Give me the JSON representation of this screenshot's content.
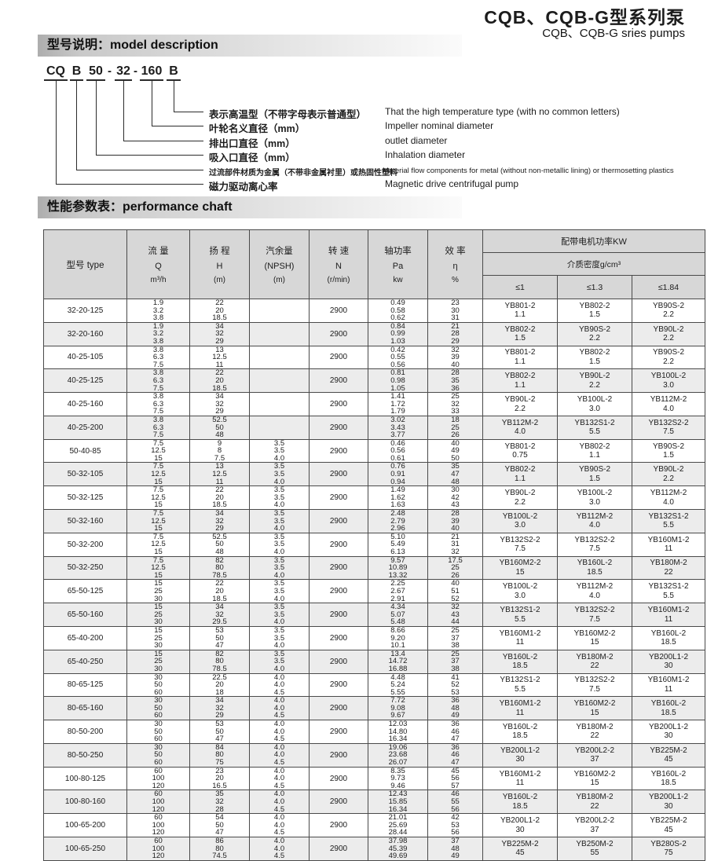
{
  "page": {
    "title_cn": "CQB、CQB-G型系列泵",
    "title_en": "CQB、CQB-G sries pumps"
  },
  "sections": {
    "model_desc": "型号说明：model description",
    "performance": "性能参数表：performance chaft"
  },
  "colors": {
    "header_bg": "#d7d7d7",
    "row_stripe": "#ececec",
    "bar_gradient_start": "#adadad",
    "bar_gradient_end": "#fbfbfb"
  },
  "model_code": {
    "tokens": [
      "CQ",
      "B",
      "50",
      "32",
      "160",
      "B"
    ],
    "separator": "-",
    "items": [
      {
        "cn": "表示高温型（不带字母表示普通型）",
        "en": "That the high temperature type (with no common letters)"
      },
      {
        "cn": "叶轮名义直径（mm）",
        "en": "Impeller nominal diameter"
      },
      {
        "cn": "排出口直径（mm）",
        "en": "outlet diameter"
      },
      {
        "cn": "吸入口直径（mm）",
        "en": "Inhalation diameter"
      },
      {
        "cn": "过流部件材质为金属（不带非金属衬里）或热固性塑料",
        "en": "Material flow components for metal (without non-metallic lining) or thermosetting plastics"
      },
      {
        "cn": "磁力驱动离心率",
        "en": "Magnetic drive centrifugal pump"
      }
    ]
  },
  "table": {
    "headers": {
      "type": "型号 type",
      "q_cn": "流 量",
      "q_sym": "Q",
      "q_unit": "m³/h",
      "h_cn": "扬 程",
      "h_sym": "H",
      "h_unit": "(m)",
      "npsh_cn": "汽余量",
      "npsh_sym": "(NPSH)",
      "npsh_unit": "(m)",
      "n_cn": "转 速",
      "n_sym": "N",
      "n_unit": "(r/min)",
      "pa_cn": "轴功率",
      "pa_sym": "Pa",
      "pa_unit": "kw",
      "eta_cn": "效 率",
      "eta_sym": "η",
      "eta_unit": "%",
      "motor_group": "配带电机功率KW",
      "density": "介质密度g/cm³",
      "d1": "≤1",
      "d2": "≤1.3",
      "d3": "≤1.84"
    },
    "rows": [
      {
        "type": "32-20-125",
        "q": [
          "1.9",
          "3.2",
          "3.8"
        ],
        "h": [
          "22",
          "20",
          "18.5"
        ],
        "npsh": [
          "",
          "",
          ""
        ],
        "n": "2900",
        "pa": [
          "0.49",
          "0.58",
          "0.62"
        ],
        "eta": [
          "23",
          "30",
          "31"
        ],
        "m1": [
          "YB801-2",
          "1.1"
        ],
        "m2": [
          "YB802-2",
          "1.5"
        ],
        "m3": [
          "YB90S-2",
          "2.2"
        ]
      },
      {
        "type": "32-20-160",
        "q": [
          "1.9",
          "3.2",
          "3.8"
        ],
        "h": [
          "34",
          "32",
          "29"
        ],
        "npsh": [
          "",
          "",
          ""
        ],
        "n": "2900",
        "pa": [
          "0.84",
          "0.99",
          "1.03"
        ],
        "eta": [
          "21",
          "28",
          "29"
        ],
        "m1": [
          "YB802-2",
          "1.5"
        ],
        "m2": [
          "YB90S-2",
          "2.2"
        ],
        "m3": [
          "YB90L-2",
          "2.2"
        ]
      },
      {
        "type": "40-25-105",
        "q": [
          "3.8",
          "6.3",
          "7.5"
        ],
        "h": [
          "13",
          "12.5",
          "11"
        ],
        "npsh": [
          "",
          "",
          ""
        ],
        "n": "2900",
        "pa": [
          "0.42",
          "0.55",
          "0.56"
        ],
        "eta": [
          "32",
          "39",
          "40"
        ],
        "m1": [
          "YB801-2",
          "1.1"
        ],
        "m2": [
          "YB802-2",
          "1.5"
        ],
        "m3": [
          "YB90S-2",
          "2.2"
        ]
      },
      {
        "type": "40-25-125",
        "q": [
          "3.8",
          "6.3",
          "7.5"
        ],
        "h": [
          "22",
          "20",
          "18.5"
        ],
        "npsh": [
          "",
          "",
          ""
        ],
        "n": "2900",
        "pa": [
          "0.81",
          "0.98",
          "1.05"
        ],
        "eta": [
          "28",
          "35",
          "36"
        ],
        "m1": [
          "YB802-2",
          "1.1"
        ],
        "m2": [
          "YB90L-2",
          "2.2"
        ],
        "m3": [
          "YB100L-2",
          "3.0"
        ]
      },
      {
        "type": "40-25-160",
        "q": [
          "3.8",
          "6.3",
          "7.5"
        ],
        "h": [
          "34",
          "32",
          "29"
        ],
        "npsh": [
          "",
          "",
          ""
        ],
        "n": "2900",
        "pa": [
          "1.41",
          "1.72",
          "1.79"
        ],
        "eta": [
          "25",
          "32",
          "33"
        ],
        "m1": [
          "YB90L-2",
          "2.2"
        ],
        "m2": [
          "YB100L-2",
          "3.0"
        ],
        "m3": [
          "YB112M-2",
          "4.0"
        ]
      },
      {
        "type": "40-25-200",
        "q": [
          "3.8",
          "6.3",
          "7.5"
        ],
        "h": [
          "52.5",
          "50",
          "48"
        ],
        "npsh": [
          "",
          "",
          ""
        ],
        "n": "2900",
        "pa": [
          "3.02",
          "3.43",
          "3.77"
        ],
        "eta": [
          "18",
          "25",
          "26"
        ],
        "m1": [
          "YB112M-2",
          "4.0"
        ],
        "m2": [
          "YB132S1-2",
          "5.5"
        ],
        "m3": [
          "YB132S2-2",
          "7.5"
        ]
      },
      {
        "type": "50-40-85",
        "q": [
          "7.5",
          "12.5",
          "15"
        ],
        "h": [
          "9",
          "8",
          "7.5"
        ],
        "npsh": [
          "3.5",
          "3.5",
          "4.0"
        ],
        "n": "2900",
        "pa": [
          "0.46",
          "0.56",
          "0.61"
        ],
        "eta": [
          "40",
          "49",
          "50"
        ],
        "m1": [
          "YB801-2",
          "0.75"
        ],
        "m2": [
          "YB802-2",
          "1.1"
        ],
        "m3": [
          "YB90S-2",
          "1.5"
        ]
      },
      {
        "type": "50-32-105",
        "q": [
          "7.5",
          "12.5",
          "15"
        ],
        "h": [
          "13",
          "12.5",
          "11"
        ],
        "npsh": [
          "3.5",
          "3.5",
          "4.0"
        ],
        "n": "2900",
        "pa": [
          "0.76",
          "0.91",
          "0.94"
        ],
        "eta": [
          "35",
          "47",
          "48"
        ],
        "m1": [
          "YB802-2",
          "1.1"
        ],
        "m2": [
          "YB90S-2",
          "1.5"
        ],
        "m3": [
          "YB90L-2",
          "2.2"
        ]
      },
      {
        "type": "50-32-125",
        "q": [
          "7.5",
          "12.5",
          "15"
        ],
        "h": [
          "22",
          "20",
          "18.5"
        ],
        "npsh": [
          "3.5",
          "3.5",
          "4.0"
        ],
        "n": "2900",
        "pa": [
          "1.49",
          "1.62",
          "1.63"
        ],
        "eta": [
          "30",
          "42",
          "43"
        ],
        "m1": [
          "YB90L-2",
          "2.2"
        ],
        "m2": [
          "YB100L-2",
          "3.0"
        ],
        "m3": [
          "YB112M-2",
          "4.0"
        ]
      },
      {
        "type": "50-32-160",
        "q": [
          "7.5",
          "12.5",
          "15"
        ],
        "h": [
          "34",
          "32",
          "29"
        ],
        "npsh": [
          "3.5",
          "3.5",
          "4.0"
        ],
        "n": "2900",
        "pa": [
          "2.48",
          "2.79",
          "2.96"
        ],
        "eta": [
          "28",
          "39",
          "40"
        ],
        "m1": [
          "YB100L-2",
          "3.0"
        ],
        "m2": [
          "YB112M-2",
          "4.0"
        ],
        "m3": [
          "YB132S1-2",
          "5.5"
        ]
      },
      {
        "type": "50-32-200",
        "q": [
          "7.5",
          "12.5",
          "15"
        ],
        "h": [
          "52.5",
          "50",
          "48"
        ],
        "npsh": [
          "3.5",
          "3.5",
          "4.0"
        ],
        "n": "2900",
        "pa": [
          "5.10",
          "5.49",
          "6.13"
        ],
        "eta": [
          "21",
          "31",
          "32"
        ],
        "m1": [
          "YB132S2-2",
          "7.5"
        ],
        "m2": [
          "YB132S2-2",
          "7.5"
        ],
        "m3": [
          "YB160M1-2",
          "11"
        ]
      },
      {
        "type": "50-32-250",
        "q": [
          "7.5",
          "12.5",
          "15"
        ],
        "h": [
          "82",
          "80",
          "78.5"
        ],
        "npsh": [
          "3.5",
          "3.5",
          "4.0"
        ],
        "n": "2900",
        "pa": [
          "9.57",
          "10.89",
          "13.32"
        ],
        "eta": [
          "17.5",
          "25",
          "26"
        ],
        "m1": [
          "YB160M2-2",
          "15"
        ],
        "m2": [
          "YB160L-2",
          "18.5"
        ],
        "m3": [
          "YB180M-2",
          "22"
        ]
      },
      {
        "type": "65-50-125",
        "q": [
          "15",
          "25",
          "30"
        ],
        "h": [
          "22",
          "20",
          "18.5"
        ],
        "npsh": [
          "3.5",
          "3.5",
          "4.0"
        ],
        "n": "2900",
        "pa": [
          "2.25",
          "2.67",
          "2.91"
        ],
        "eta": [
          "40",
          "51",
          "52"
        ],
        "m1": [
          "YB100L-2",
          "3.0"
        ],
        "m2": [
          "YB112M-2",
          "4.0"
        ],
        "m3": [
          "YB132S1-2",
          "5.5"
        ]
      },
      {
        "type": "65-50-160",
        "q": [
          "15",
          "25",
          "30"
        ],
        "h": [
          "34",
          "32",
          "29.5"
        ],
        "npsh": [
          "3.5",
          "3.5",
          "4.0"
        ],
        "n": "2900",
        "pa": [
          "4.34",
          "5.07",
          "5.48"
        ],
        "eta": [
          "32",
          "43",
          "44"
        ],
        "m1": [
          "YB132S1-2",
          "5.5"
        ],
        "m2": [
          "YB132S2-2",
          "7.5"
        ],
        "m3": [
          "YB160M1-2",
          "11"
        ]
      },
      {
        "type": "65-40-200",
        "q": [
          "15",
          "25",
          "30"
        ],
        "h": [
          "53",
          "50",
          "47"
        ],
        "npsh": [
          "3.5",
          "3.5",
          "4.0"
        ],
        "n": "2900",
        "pa": [
          "8.66",
          "9.20",
          "10.1"
        ],
        "eta": [
          "25",
          "37",
          "38"
        ],
        "m1": [
          "YB160M1-2",
          "11"
        ],
        "m2": [
          "YB160M2-2",
          "15"
        ],
        "m3": [
          "YB160L-2",
          "18.5"
        ]
      },
      {
        "type": "65-40-250",
        "q": [
          "15",
          "25",
          "30"
        ],
        "h": [
          "82",
          "80",
          "78.5"
        ],
        "npsh": [
          "3.5",
          "3.5",
          "4.0"
        ],
        "n": "2900",
        "pa": [
          "13.4",
          "14.72",
          "16.88"
        ],
        "eta": [
          "25",
          "37",
          "38"
        ],
        "m1": [
          "YB160L-2",
          "18.5"
        ],
        "m2": [
          "YB180M-2",
          "22"
        ],
        "m3": [
          "YB200L1-2",
          "30"
        ]
      },
      {
        "type": "80-65-125",
        "q": [
          "30",
          "50",
          "60"
        ],
        "h": [
          "22.5",
          "20",
          "18"
        ],
        "npsh": [
          "4.0",
          "4.0",
          "4.5"
        ],
        "n": "2900",
        "pa": [
          "4.48",
          "5.24",
          "5.55"
        ],
        "eta": [
          "41",
          "52",
          "53"
        ],
        "m1": [
          "YB132S1-2",
          "5.5"
        ],
        "m2": [
          "YB132S2-2",
          "7.5"
        ],
        "m3": [
          "YB160M1-2",
          "11"
        ]
      },
      {
        "type": "80-65-160",
        "q": [
          "30",
          "50",
          "60"
        ],
        "h": [
          "34",
          "32",
          "29"
        ],
        "npsh": [
          "4.0",
          "4.0",
          "4.5"
        ],
        "n": "2900",
        "pa": [
          "7.72",
          "9.08",
          "9.67"
        ],
        "eta": [
          "36",
          "48",
          "49"
        ],
        "m1": [
          "YB160M1-2",
          "11"
        ],
        "m2": [
          "YB160M2-2",
          "15"
        ],
        "m3": [
          "YB160L-2",
          "18.5"
        ]
      },
      {
        "type": "80-50-200",
        "q": [
          "30",
          "50",
          "60"
        ],
        "h": [
          "53",
          "50",
          "47"
        ],
        "npsh": [
          "4.0",
          "4.0",
          "4.5"
        ],
        "n": "2900",
        "pa": [
          "12.03",
          "14.80",
          "16.34"
        ],
        "eta": [
          "36",
          "46",
          "47"
        ],
        "m1": [
          "YB160L-2",
          "18.5"
        ],
        "m2": [
          "YB180M-2",
          "22"
        ],
        "m3": [
          "YB200L1-2",
          "30"
        ]
      },
      {
        "type": "80-50-250",
        "q": [
          "30",
          "50",
          "60"
        ],
        "h": [
          "84",
          "80",
          "75"
        ],
        "npsh": [
          "4.0",
          "4.0",
          "4.5"
        ],
        "n": "2900",
        "pa": [
          "19.06",
          "23.68",
          "26.07"
        ],
        "eta": [
          "36",
          "46",
          "47"
        ],
        "m1": [
          "YB200L1-2",
          "30"
        ],
        "m2": [
          "YB200L2-2",
          "37"
        ],
        "m3": [
          "YB225M-2",
          "45"
        ]
      },
      {
        "type": "100-80-125",
        "q": [
          "60",
          "100",
          "120"
        ],
        "h": [
          "23",
          "20",
          "16.5"
        ],
        "npsh": [
          "4.0",
          "4.0",
          "4.5"
        ],
        "n": "2900",
        "pa": [
          "8.35",
          "9.73",
          "9.46"
        ],
        "eta": [
          "45",
          "56",
          "57"
        ],
        "m1": [
          "YB160M1-2",
          "11"
        ],
        "m2": [
          "YB160M2-2",
          "15"
        ],
        "m3": [
          "YB160L-2",
          "18.5"
        ]
      },
      {
        "type": "100-80-160",
        "q": [
          "60",
          "100",
          "120"
        ],
        "h": [
          "35",
          "32",
          "28"
        ],
        "npsh": [
          "4.0",
          "4.0",
          "4.5"
        ],
        "n": "2900",
        "pa": [
          "12.43",
          "15.85",
          "16.34"
        ],
        "eta": [
          "46",
          "55",
          "56"
        ],
        "m1": [
          "YB160L-2",
          "18.5"
        ],
        "m2": [
          "YB180M-2",
          "22"
        ],
        "m3": [
          "YB200L1-2",
          "30"
        ]
      },
      {
        "type": "100-65-200",
        "q": [
          "60",
          "100",
          "120"
        ],
        "h": [
          "54",
          "50",
          "47"
        ],
        "npsh": [
          "4.0",
          "4.0",
          "4.5"
        ],
        "n": "2900",
        "pa": [
          "21.01",
          "25.69",
          "28.44"
        ],
        "eta": [
          "42",
          "53",
          "56"
        ],
        "m1": [
          "YB200L1-2",
          "30"
        ],
        "m2": [
          "YB200L2-2",
          "37"
        ],
        "m3": [
          "YB225M-2",
          "45"
        ]
      },
      {
        "type": "100-65-250",
        "q": [
          "60",
          "100",
          "120"
        ],
        "h": [
          "86",
          "80",
          "74.5"
        ],
        "npsh": [
          "4.0",
          "4.0",
          "4.5"
        ],
        "n": "2900",
        "pa": [
          "37.98",
          "45.39",
          "49.69"
        ],
        "eta": [
          "37",
          "48",
          "49"
        ],
        "m1": [
          "YB225M-2",
          "45"
        ],
        "m2": [
          "YB250M-2",
          "55"
        ],
        "m3": [
          "YB280S-2",
          "75"
        ]
      }
    ]
  }
}
